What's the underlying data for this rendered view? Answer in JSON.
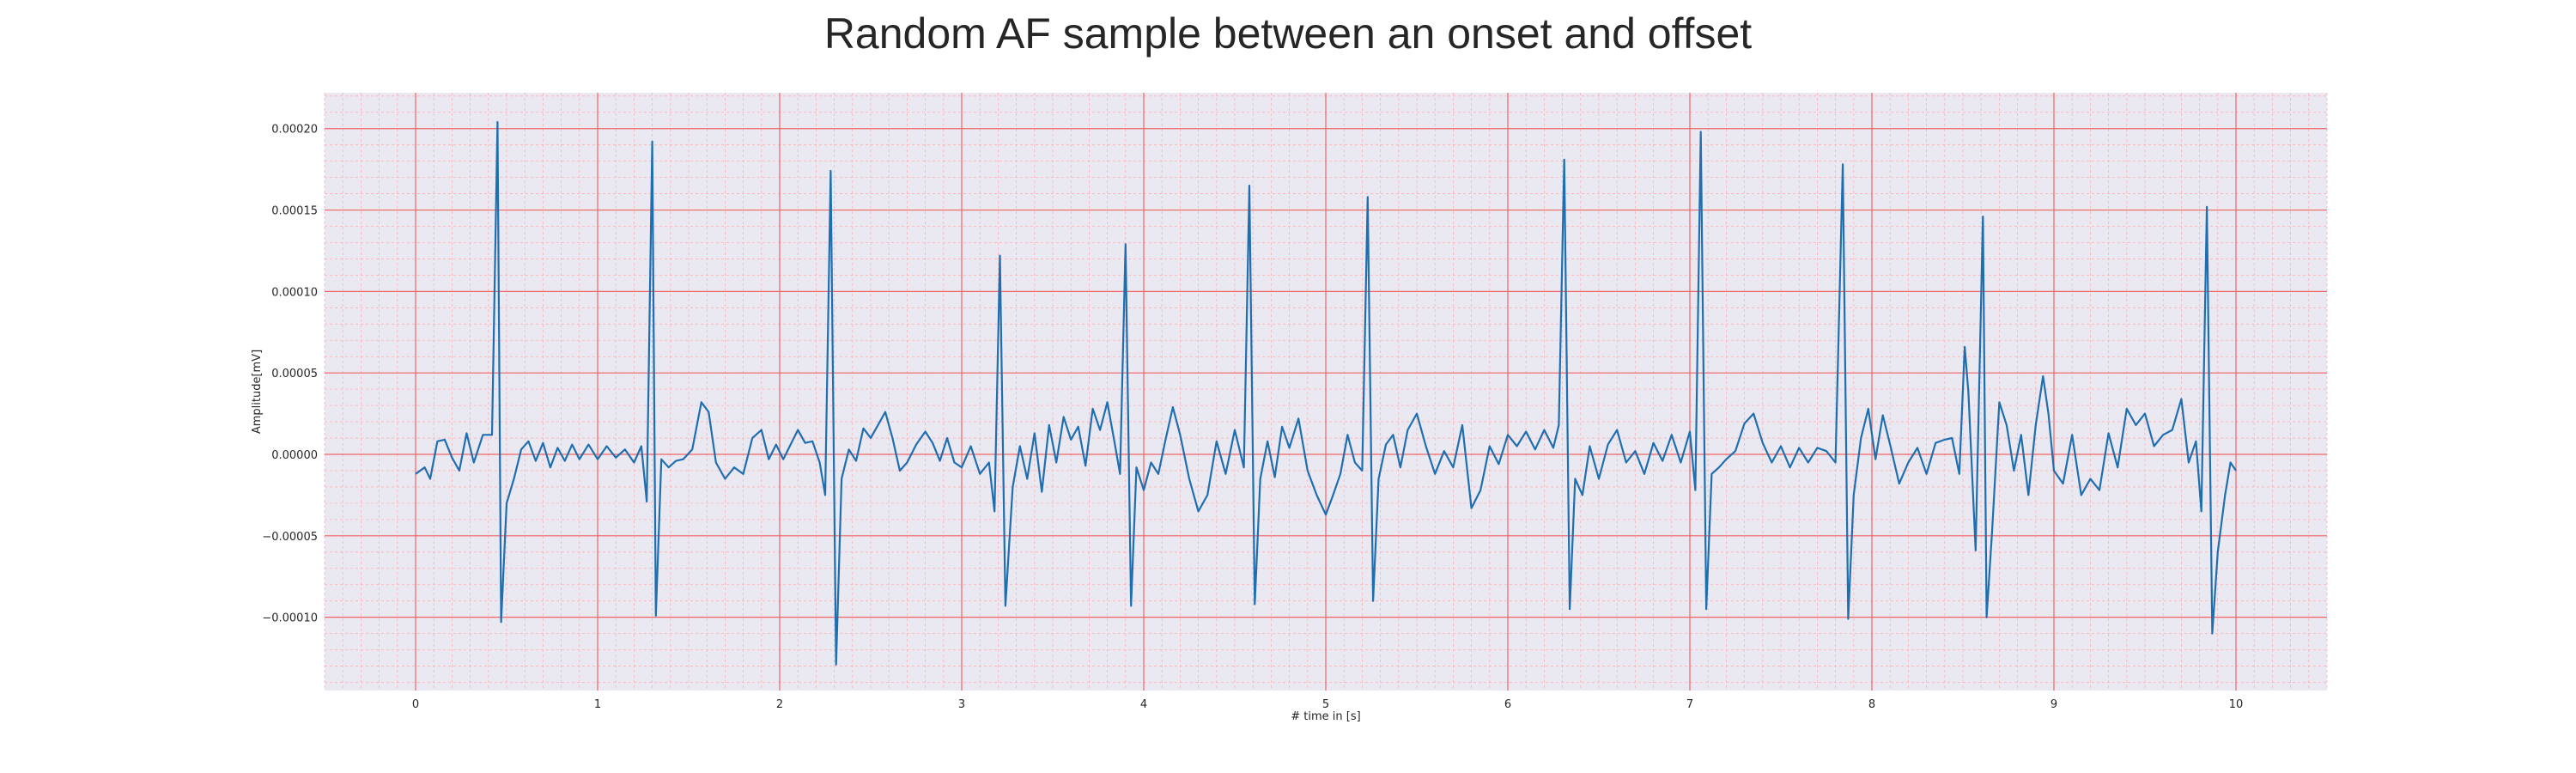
{
  "chart_data": {
    "type": "line",
    "title": "Random AF sample between an onset and offset",
    "xlabel": "# time in [s]",
    "ylabel": "Amplitude[mV]",
    "xlim": [
      -0.5,
      10.5
    ],
    "ylim": [
      -0.000145,
      0.000222
    ],
    "x_ticks": [
      0,
      1,
      2,
      3,
      4,
      5,
      6,
      7,
      8,
      9,
      10
    ],
    "x_tick_labels": [
      "0",
      "1",
      "2",
      "3",
      "4",
      "5",
      "6",
      "7",
      "8",
      "9",
      "10"
    ],
    "y_ticks": [
      0.0002,
      0.00015,
      0.0001,
      5e-05,
      0,
      -5e-05,
      -0.0001
    ],
    "y_tick_labels": [
      "0.00020",
      "0.00015",
      "0.00010",
      "0.00005",
      "0.00000",
      "−0.00005",
      "−0.00010"
    ],
    "grid": true,
    "colors": {
      "plot_background": "#eae9f2",
      "major_grid": "#f06464",
      "minor_grid": "#f7b2b8",
      "line": "#1f6fb0",
      "text": "#262626"
    },
    "series": [
      {
        "points": [
          [
            0.0,
            -1.2e-05
          ],
          [
            0.05,
            -8e-06
          ],
          [
            0.08,
            -1.5e-05
          ],
          [
            0.12,
            8e-06
          ],
          [
            0.16,
            9e-06
          ],
          [
            0.2,
            -2e-06
          ],
          [
            0.24,
            -1e-05
          ],
          [
            0.28,
            1.3e-05
          ],
          [
            0.32,
            -5e-06
          ],
          [
            0.37,
            1.2e-05
          ],
          [
            0.42,
            1.2e-05
          ],
          [
            0.45,
            0.000204
          ],
          [
            0.47,
            -0.000103
          ],
          [
            0.5,
            -3e-05
          ],
          [
            0.54,
            -1.5e-05
          ],
          [
            0.58,
            3e-06
          ],
          [
            0.62,
            8e-06
          ],
          [
            0.66,
            -4e-06
          ],
          [
            0.7,
            7e-06
          ],
          [
            0.74,
            -8e-06
          ],
          [
            0.78,
            4e-06
          ],
          [
            0.82,
            -4e-06
          ],
          [
            0.86,
            6e-06
          ],
          [
            0.9,
            -3e-06
          ],
          [
            0.95,
            6e-06
          ],
          [
            1.0,
            -3e-06
          ],
          [
            1.05,
            5e-06
          ],
          [
            1.1,
            -2e-06
          ],
          [
            1.15,
            3e-06
          ],
          [
            1.2,
            -5e-06
          ],
          [
            1.24,
            5e-06
          ],
          [
            1.27,
            -2.9e-05
          ],
          [
            1.3,
            0.000192
          ],
          [
            1.32,
            -9.9e-05
          ],
          [
            1.35,
            -3e-06
          ],
          [
            1.39,
            -8e-06
          ],
          [
            1.43,
            -4e-06
          ],
          [
            1.47,
            -3e-06
          ],
          [
            1.52,
            3e-06
          ],
          [
            1.57,
            3.2e-05
          ],
          [
            1.61,
            2.6e-05
          ],
          [
            1.65,
            -5e-06
          ],
          [
            1.7,
            -1.5e-05
          ],
          [
            1.75,
            -8e-06
          ],
          [
            1.8,
            -1.2e-05
          ],
          [
            1.85,
            1e-05
          ],
          [
            1.9,
            1.5e-05
          ],
          [
            1.94,
            -3e-06
          ],
          [
            1.98,
            6e-06
          ],
          [
            2.02,
            -3e-06
          ],
          [
            2.06,
            6e-06
          ],
          [
            2.1,
            1.5e-05
          ],
          [
            2.14,
            7e-06
          ],
          [
            2.18,
            8e-06
          ],
          [
            2.22,
            -5e-06
          ],
          [
            2.25,
            -2.5e-05
          ],
          [
            2.28,
            0.000174
          ],
          [
            2.31,
            -0.000129
          ],
          [
            2.34,
            -1.5e-05
          ],
          [
            2.38,
            3e-06
          ],
          [
            2.42,
            -4e-06
          ],
          [
            2.46,
            1.6e-05
          ],
          [
            2.5,
            1e-05
          ],
          [
            2.54,
            1.8e-05
          ],
          [
            2.58,
            2.6e-05
          ],
          [
            2.62,
            1e-05
          ],
          [
            2.66,
            -1e-05
          ],
          [
            2.7,
            -5e-06
          ],
          [
            2.75,
            6e-06
          ],
          [
            2.8,
            1.4e-05
          ],
          [
            2.84,
            7e-06
          ],
          [
            2.88,
            -4e-06
          ],
          [
            2.92,
            1e-05
          ],
          [
            2.96,
            -5e-06
          ],
          [
            3.0,
            -8e-06
          ],
          [
            3.05,
            5e-06
          ],
          [
            3.1,
            -1.2e-05
          ],
          [
            3.15,
            -5e-06
          ],
          [
            3.18,
            -3.5e-05
          ],
          [
            3.21,
            0.000122
          ],
          [
            3.24,
            -9.3e-05
          ],
          [
            3.28,
            -2e-05
          ],
          [
            3.32,
            5e-06
          ],
          [
            3.36,
            -1.5e-05
          ],
          [
            3.4,
            1.3e-05
          ],
          [
            3.44,
            -2.3e-05
          ],
          [
            3.48,
            1.8e-05
          ],
          [
            3.52,
            -5e-06
          ],
          [
            3.56,
            2.3e-05
          ],
          [
            3.6,
            9e-06
          ],
          [
            3.64,
            1.7e-05
          ],
          [
            3.68,
            -7e-06
          ],
          [
            3.72,
            2.8e-05
          ],
          [
            3.76,
            1.5e-05
          ],
          [
            3.8,
            3.2e-05
          ],
          [
            3.84,
            7e-06
          ],
          [
            3.87,
            -1.2e-05
          ],
          [
            3.9,
            0.000129
          ],
          [
            3.93,
            -9.3e-05
          ],
          [
            3.96,
            -8e-06
          ],
          [
            4.0,
            -2.2e-05
          ],
          [
            4.04,
            -5e-06
          ],
          [
            4.08,
            -1.2e-05
          ],
          [
            4.12,
            9e-06
          ],
          [
            4.16,
            2.9e-05
          ],
          [
            4.2,
            1.2e-05
          ],
          [
            4.25,
            -1.5e-05
          ],
          [
            4.3,
            -3.5e-05
          ],
          [
            4.35,
            -2.5e-05
          ],
          [
            4.4,
            8e-06
          ],
          [
            4.45,
            -1.2e-05
          ],
          [
            4.5,
            1.5e-05
          ],
          [
            4.55,
            -8e-06
          ],
          [
            4.58,
            0.000165
          ],
          [
            4.61,
            -9.2e-05
          ],
          [
            4.64,
            -1.5e-05
          ],
          [
            4.68,
            8e-06
          ],
          [
            4.72,
            -1.4e-05
          ],
          [
            4.76,
            1.7e-05
          ],
          [
            4.8,
            4e-06
          ],
          [
            4.85,
            2.2e-05
          ],
          [
            4.9,
            -1e-05
          ],
          [
            4.95,
            -2.5e-05
          ],
          [
            5.0,
            -3.7e-05
          ],
          [
            5.04,
            -2.5e-05
          ],
          [
            5.08,
            -1.2e-05
          ],
          [
            5.12,
            1.2e-05
          ],
          [
            5.16,
            -5e-06
          ],
          [
            5.2,
            -1e-05
          ],
          [
            5.23,
            0.000158
          ],
          [
            5.26,
            -9e-05
          ],
          [
            5.29,
            -1.5e-05
          ],
          [
            5.33,
            6e-06
          ],
          [
            5.37,
            1.2e-05
          ],
          [
            5.41,
            -8e-06
          ],
          [
            5.45,
            1.5e-05
          ],
          [
            5.5,
            2.5e-05
          ],
          [
            5.55,
            5e-06
          ],
          [
            5.6,
            -1.2e-05
          ],
          [
            5.65,
            2e-06
          ],
          [
            5.7,
            -8e-06
          ],
          [
            5.75,
            1.8e-05
          ],
          [
            5.8,
            -3.3e-05
          ],
          [
            5.85,
            -2.2e-05
          ],
          [
            5.9,
            5e-06
          ],
          [
            5.95,
            -6e-06
          ],
          [
            6.0,
            1.2e-05
          ],
          [
            6.05,
            5e-06
          ],
          [
            6.1,
            1.4e-05
          ],
          [
            6.15,
            3e-06
          ],
          [
            6.2,
            1.5e-05
          ],
          [
            6.25,
            4e-06
          ],
          [
            6.28,
            1.8e-05
          ],
          [
            6.31,
            0.000181
          ],
          [
            6.34,
            -9.5e-05
          ],
          [
            6.37,
            -1.5e-05
          ],
          [
            6.41,
            -2.5e-05
          ],
          [
            6.45,
            5e-06
          ],
          [
            6.5,
            -1.5e-05
          ],
          [
            6.55,
            6e-06
          ],
          [
            6.6,
            1.5e-05
          ],
          [
            6.65,
            -5e-06
          ],
          [
            6.7,
            2e-06
          ],
          [
            6.75,
            -1.2e-05
          ],
          [
            6.8,
            7e-06
          ],
          [
            6.85,
            -4e-06
          ],
          [
            6.9,
            1.2e-05
          ],
          [
            6.95,
            -5e-06
          ],
          [
            7.0,
            1.4e-05
          ],
          [
            7.03,
            -2.2e-05
          ],
          [
            7.06,
            0.000198
          ],
          [
            7.09,
            -9.5e-05
          ],
          [
            7.12,
            -1.2e-05
          ],
          [
            7.16,
            -8e-06
          ],
          [
            7.2,
            -3e-06
          ],
          [
            7.25,
            2e-06
          ],
          [
            7.3,
            1.9e-05
          ],
          [
            7.35,
            2.5e-05
          ],
          [
            7.4,
            7e-06
          ],
          [
            7.45,
            -5e-06
          ],
          [
            7.5,
            5e-06
          ],
          [
            7.55,
            -8e-06
          ],
          [
            7.6,
            4e-06
          ],
          [
            7.65,
            -5e-06
          ],
          [
            7.7,
            4e-06
          ],
          [
            7.75,
            2e-06
          ],
          [
            7.8,
            -5e-06
          ],
          [
            7.84,
            0.000178
          ],
          [
            7.87,
            -0.000101
          ],
          [
            7.9,
            -2.5e-05
          ],
          [
            7.94,
            1e-05
          ],
          [
            7.98,
            2.8e-05
          ],
          [
            8.02,
            -3e-06
          ],
          [
            8.06,
            2.4e-05
          ],
          [
            8.1,
            6e-06
          ],
          [
            8.15,
            -1.8e-05
          ],
          [
            8.2,
            -5e-06
          ],
          [
            8.25,
            4e-06
          ],
          [
            8.3,
            -1.2e-05
          ],
          [
            8.35,
            7e-06
          ],
          [
            8.4,
            9e-06
          ],
          [
            8.44,
            1e-05
          ],
          [
            8.48,
            -1.2e-05
          ],
          [
            8.51,
            6.6e-05
          ],
          [
            8.53,
            3.8e-05
          ],
          [
            8.57,
            -5.9e-05
          ],
          [
            8.61,
            0.000146
          ],
          [
            8.63,
            -0.0001
          ],
          [
            8.66,
            -4.8e-05
          ],
          [
            8.7,
            3.2e-05
          ],
          [
            8.74,
            1.8e-05
          ],
          [
            8.78,
            -1e-05
          ],
          [
            8.82,
            1.2e-05
          ],
          [
            8.86,
            -2.5e-05
          ],
          [
            8.9,
            1.8e-05
          ],
          [
            8.94,
            4.8e-05
          ],
          [
            8.97,
            2.5e-05
          ],
          [
            9.0,
            -1e-05
          ],
          [
            9.05,
            -1.8e-05
          ],
          [
            9.1,
            1.2e-05
          ],
          [
            9.15,
            -2.5e-05
          ],
          [
            9.2,
            -1.5e-05
          ],
          [
            9.25,
            -2.2e-05
          ],
          [
            9.3,
            1.3e-05
          ],
          [
            9.35,
            -8e-06
          ],
          [
            9.4,
            2.8e-05
          ],
          [
            9.45,
            1.8e-05
          ],
          [
            9.5,
            2.5e-05
          ],
          [
            9.55,
            5e-06
          ],
          [
            9.6,
            1.2e-05
          ],
          [
            9.65,
            1.5e-05
          ],
          [
            9.7,
            3.4e-05
          ],
          [
            9.74,
            -5e-06
          ],
          [
            9.78,
            8e-06
          ],
          [
            9.81,
            -3.5e-05
          ],
          [
            9.84,
            0.000152
          ],
          [
            9.87,
            -0.00011
          ],
          [
            9.9,
            -6e-05
          ],
          [
            9.94,
            -2.5e-05
          ],
          [
            9.97,
            -5e-06
          ],
          [
            10.0,
            -1e-05
          ]
        ]
      }
    ]
  }
}
